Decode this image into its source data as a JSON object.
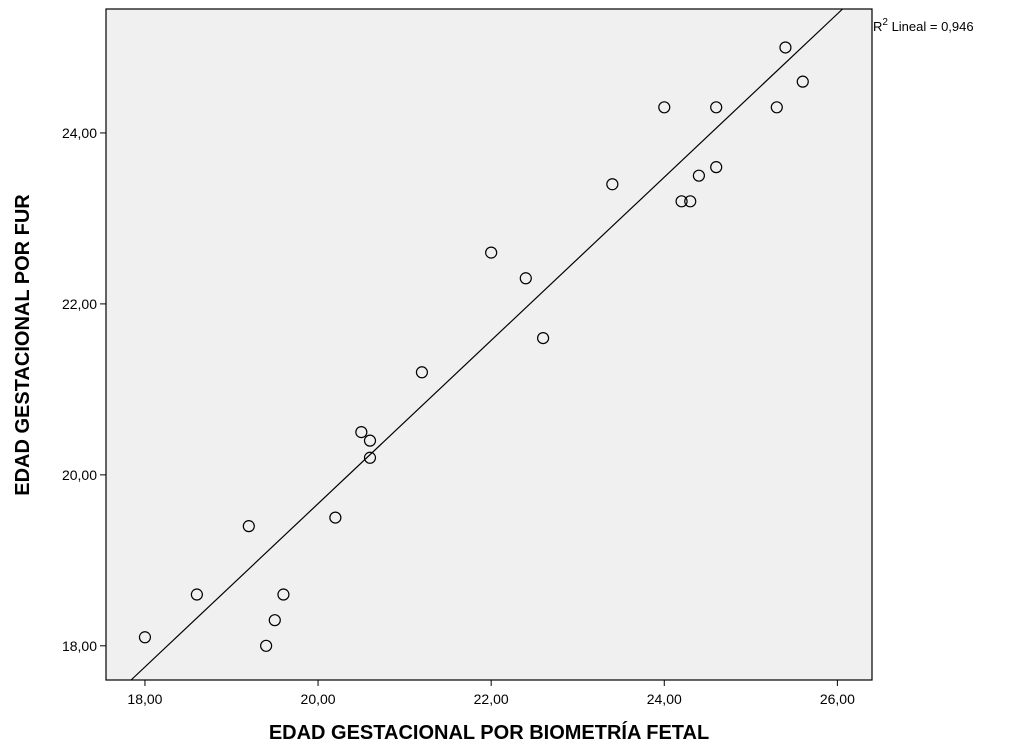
{
  "chart_data": {
    "type": "scatter",
    "xlabel": "EDAD GESTACIONAL POR BIOMETRÍA FETAL",
    "ylabel": "EDAD GESTACIONAL POR FUR",
    "xlim": [
      17.55,
      26.4
    ],
    "ylim": [
      17.6,
      25.45
    ],
    "x_ticks": [
      18,
      20,
      22,
      24,
      26
    ],
    "x_tick_labels": [
      "18,00",
      "20,00",
      "22,00",
      "24,00",
      "26,00"
    ],
    "y_ticks": [
      18,
      20,
      22,
      24
    ],
    "y_tick_labels": [
      "18,00",
      "20,00",
      "22,00",
      "24,00"
    ],
    "points": [
      {
        "x": 18.0,
        "y": 18.1
      },
      {
        "x": 18.6,
        "y": 18.6
      },
      {
        "x": 19.2,
        "y": 19.4
      },
      {
        "x": 19.4,
        "y": 18.0
      },
      {
        "x": 19.5,
        "y": 18.3
      },
      {
        "x": 19.6,
        "y": 18.6
      },
      {
        "x": 20.2,
        "y": 19.5
      },
      {
        "x": 20.5,
        "y": 20.5
      },
      {
        "x": 20.6,
        "y": 20.4
      },
      {
        "x": 20.6,
        "y": 20.2
      },
      {
        "x": 21.2,
        "y": 21.2
      },
      {
        "x": 22.0,
        "y": 22.6
      },
      {
        "x": 22.4,
        "y": 22.3
      },
      {
        "x": 22.6,
        "y": 21.6
      },
      {
        "x": 23.4,
        "y": 23.4
      },
      {
        "x": 24.0,
        "y": 24.3
      },
      {
        "x": 24.2,
        "y": 23.2
      },
      {
        "x": 24.3,
        "y": 23.2
      },
      {
        "x": 24.4,
        "y": 23.5
      },
      {
        "x": 24.6,
        "y": 23.6
      },
      {
        "x": 24.6,
        "y": 24.3
      },
      {
        "x": 25.3,
        "y": 24.3
      },
      {
        "x": 25.4,
        "y": 25.0
      },
      {
        "x": 25.6,
        "y": 24.6
      }
    ],
    "fit_line": {
      "x": [
        17.84,
        26.06
      ],
      "y": [
        17.6,
        25.45
      ]
    },
    "annotation": {
      "prefix": "R",
      "superscript": "2",
      "suffix": " Lineal = 0,946"
    },
    "plot_background": "#f0f0f0",
    "marker_color": "#000000",
    "grid": false
  }
}
